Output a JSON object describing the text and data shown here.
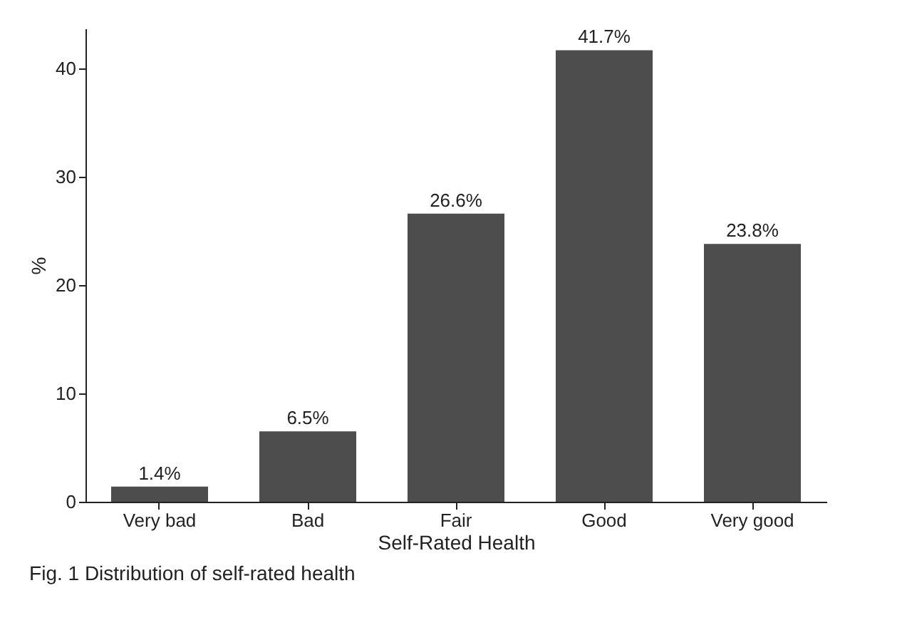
{
  "chart_data": {
    "type": "bar",
    "xlabel": "Self-Rated Health",
    "ylabel": "%",
    "categories": [
      "Very bad",
      "Bad",
      "Fair",
      "Good",
      "Very good"
    ],
    "values": [
      1.4,
      6.5,
      26.6,
      41.7,
      23.8
    ],
    "value_labels": [
      "1.4%",
      "6.5%",
      "26.6%",
      "41.7%",
      "23.8%"
    ],
    "color": "#4d4d4d",
    "ylim": [
      0,
      43.7
    ],
    "yticks": [
      0,
      10,
      20,
      30,
      40
    ],
    "grid": false,
    "annotations": [
      "Fig. 1 Distribution of self-rated health"
    ]
  }
}
